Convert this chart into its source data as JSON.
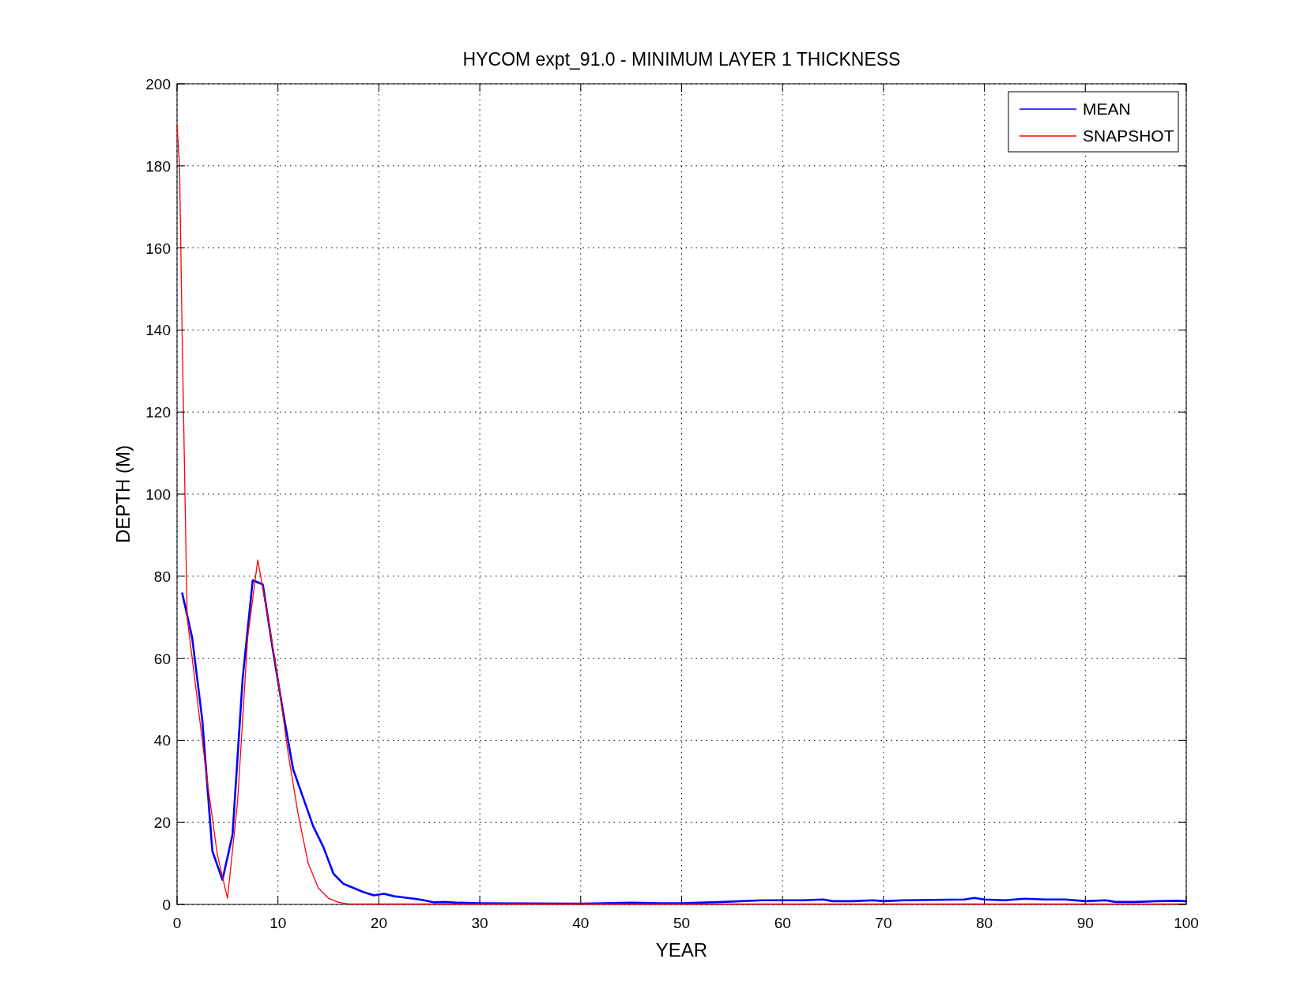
{
  "chart_data": {
    "type": "line",
    "title": "HYCOM expt_91.0 - MINIMUM LAYER 1 THICKNESS",
    "xlabel": "YEAR",
    "ylabel": "DEPTH (M)",
    "xlim": [
      0,
      100
    ],
    "xticks": [
      0,
      10,
      20,
      30,
      40,
      50,
      60,
      70,
      80,
      90,
      100
    ],
    "ylim": [
      0,
      200
    ],
    "yticks": [
      0,
      20,
      40,
      60,
      80,
      100,
      120,
      140,
      160,
      180,
      200
    ],
    "grid": true,
    "legend": "top right",
    "line_style": "solid",
    "series": [
      {
        "name": "MEAN",
        "color": "#0000ff",
        "x": [
          0.5,
          1.5,
          2.5,
          3.5,
          4.5,
          5.5,
          6.5,
          7.5,
          8.5,
          9.5,
          10.5,
          11.5,
          12.5,
          13.5,
          14.5,
          15.5,
          16.5,
          17.5,
          18.5,
          19.5,
          20.5,
          21.5,
          22.5,
          23.5,
          24.5,
          25.5,
          26.5,
          28,
          30,
          40,
          45,
          48,
          50,
          54,
          58,
          62,
          64,
          65,
          67,
          69,
          70,
          72,
          78,
          79,
          80,
          82,
          84,
          86,
          88,
          90,
          92,
          93,
          95,
          97,
          99,
          100
        ],
        "values": [
          76,
          65,
          45,
          13,
          6,
          17,
          55,
          79,
          78,
          62,
          47,
          33,
          26,
          19,
          14,
          7.5,
          5,
          4,
          3,
          2.2,
          2.6,
          2,
          1.7,
          1.4,
          1,
          0.5,
          0.6,
          0.4,
          0.3,
          0.2,
          0.4,
          0.3,
          0.3,
          0.6,
          1,
          1,
          1.2,
          0.8,
          0.8,
          1,
          0.8,
          1,
          1.2,
          1.6,
          1.2,
          1,
          1.4,
          1.2,
          1.2,
          0.8,
          1,
          0.6,
          0.6,
          0.8,
          0.9,
          0.8
        ]
      },
      {
        "name": "SNAPSHOT",
        "color": "#ff0000",
        "x": [
          0,
          0.25,
          0.5,
          1,
          2,
          3,
          4,
          5,
          6,
          7,
          8,
          9,
          10,
          11,
          12,
          13,
          14,
          15,
          16,
          17,
          100
        ],
        "values": [
          190,
          180,
          140,
          70,
          50,
          30,
          12,
          1.5,
          25,
          65,
          84,
          70,
          55,
          37,
          22,
          10,
          4,
          1.5,
          0.5,
          0.1,
          0.1
        ]
      }
    ]
  }
}
